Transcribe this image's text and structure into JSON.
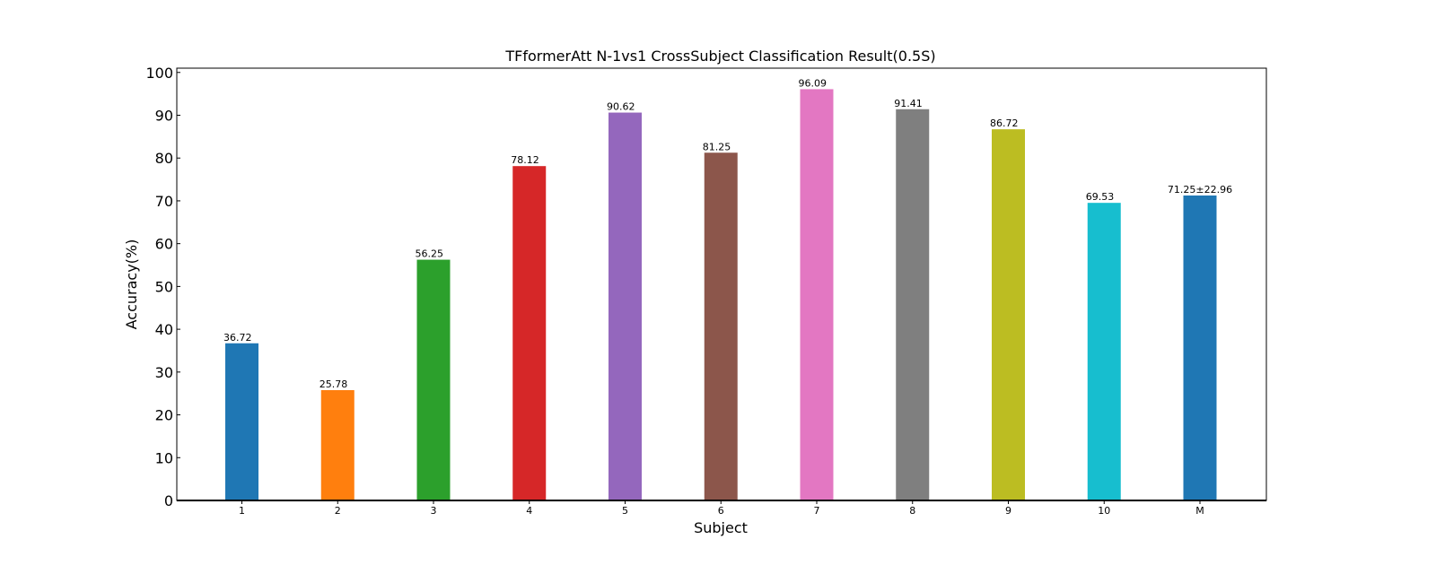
{
  "chart_data": {
    "type": "bar",
    "title": "TFformerAtt N-1vs1 CrossSubject Classification Result(0.5S)",
    "xlabel": "Subject",
    "ylabel": "Accuracy(%)",
    "ylim": [
      0,
      101
    ],
    "yticks": [
      "0",
      "10",
      "20",
      "30",
      "40",
      "50",
      "60",
      "70",
      "80",
      "90",
      "100"
    ],
    "grid": false,
    "categories": [
      "1",
      "2",
      "3",
      "4",
      "5",
      "6",
      "7",
      "8",
      "9",
      "10",
      "M"
    ],
    "values": [
      36.72,
      25.78,
      56.25,
      78.12,
      90.62,
      81.25,
      96.09,
      91.41,
      86.72,
      69.53,
      71.25
    ],
    "value_labels": [
      "36.72",
      "25.78",
      "56.25",
      "78.12",
      "90.62",
      "81.25",
      "96.09",
      "91.41",
      "86.72",
      "69.53",
      "71.25±22.96"
    ],
    "colors": [
      "#1f77b4",
      "#ff7f0e",
      "#2ca02c",
      "#d62728",
      "#9467bd",
      "#8c564b",
      "#e377c2",
      "#7f7f7f",
      "#bcbd22",
      "#17becf",
      "#1f77b4"
    ],
    "label_colors": [
      "#000000",
      "#000000",
      "#000000",
      "#000000",
      "#000000",
      "#000000",
      "#000000",
      "#000000",
      "#000000",
      "#000000",
      "#ff0000"
    ]
  }
}
